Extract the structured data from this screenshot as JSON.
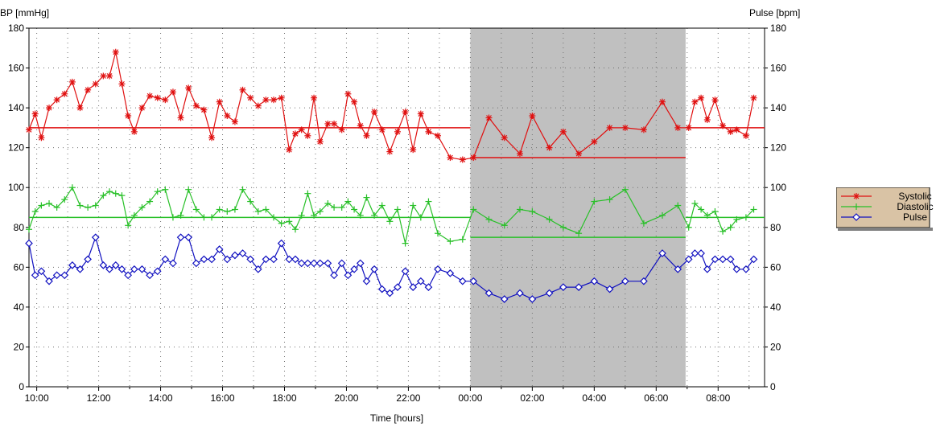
{
  "chart_data": {
    "type": "line",
    "ylabel_left": "BP [mmHg]",
    "ylabel_right": "Pulse [bpm]",
    "xlabel": "Time [hours]",
    "ylim": [
      0,
      180
    ],
    "yticks": [
      0,
      20,
      40,
      60,
      80,
      100,
      120,
      140,
      160,
      180
    ],
    "xlim_hours": [
      9.75,
      33.5
    ],
    "xtick_labels": [
      "10:00",
      "12:00",
      "14:00",
      "16:00",
      "18:00",
      "20:00",
      "22:00",
      "00:00",
      "02:00",
      "04:00",
      "06:00",
      "08:00"
    ],
    "xtick_hours": [
      10,
      12,
      14,
      16,
      18,
      20,
      22,
      24,
      26,
      28,
      30,
      32
    ],
    "grid": true,
    "night_period_hours": [
      24,
      30.95
    ],
    "colors": {
      "systolic": "#e01010",
      "diastolic": "#28c028",
      "pulse": "#1010c0",
      "night_shade": "#c0c0c0",
      "legend_bg": "#d9c3a5"
    },
    "series": [
      {
        "name": "Systolic",
        "color": "#e01010",
        "marker": "asterisk",
        "x": [
          9.75,
          9.95,
          10.15,
          10.4,
          10.65,
          10.9,
          11.15,
          11.4,
          11.65,
          11.9,
          12.15,
          12.35,
          12.55,
          12.75,
          12.95,
          13.15,
          13.4,
          13.65,
          13.9,
          14.15,
          14.4,
          14.65,
          14.9,
          15.15,
          15.4,
          15.65,
          15.9,
          16.15,
          16.4,
          16.65,
          16.9,
          17.15,
          17.4,
          17.65,
          17.9,
          18.15,
          18.35,
          18.55,
          18.75,
          18.95,
          19.15,
          19.4,
          19.6,
          19.85,
          20.05,
          20.25,
          20.45,
          20.65,
          20.9,
          21.15,
          21.4,
          21.65,
          21.9,
          22.15,
          22.4,
          22.65,
          22.95,
          23.35,
          23.75,
          24.1,
          24.6,
          25.1,
          25.6,
          26.0,
          26.55,
          27.0,
          27.5,
          28.0,
          28.5,
          29.0,
          29.6,
          30.2,
          30.7,
          31.05,
          31.25,
          31.45,
          31.65,
          31.9,
          32.15,
          32.4,
          32.6,
          32.9,
          33.15
        ],
        "values": [
          129,
          137,
          125,
          140,
          144,
          147,
          153,
          140,
          149,
          152,
          156,
          156,
          168,
          152,
          136,
          128,
          140,
          146,
          145,
          144,
          148,
          135,
          150,
          141,
          139,
          125,
          143,
          136,
          133,
          149,
          145,
          141,
          144,
          144,
          145,
          119,
          127,
          129,
          126,
          145,
          123,
          132,
          132,
          129,
          147,
          143,
          131,
          126,
          138,
          129,
          118,
          128,
          138,
          119,
          137,
          128,
          126,
          115,
          114,
          115,
          135,
          125,
          117,
          136,
          120,
          128,
          117,
          123,
          130,
          130,
          129,
          143,
          130,
          130,
          143,
          145,
          134,
          144,
          131,
          128,
          129,
          126,
          145
        ],
        "mean_segments": [
          {
            "x": [
              9.75,
              24
            ],
            "y": 130
          },
          {
            "x": [
              24,
              30.95
            ],
            "y": 115
          },
          {
            "x": [
              30.95,
              33.5
            ],
            "y": 130
          }
        ]
      },
      {
        "name": "Diastolic",
        "color": "#28c028",
        "marker": "plus",
        "x": [
          9.75,
          9.95,
          10.15,
          10.4,
          10.65,
          10.9,
          11.15,
          11.4,
          11.65,
          11.9,
          12.15,
          12.35,
          12.55,
          12.75,
          12.95,
          13.15,
          13.4,
          13.65,
          13.9,
          14.15,
          14.4,
          14.65,
          14.9,
          15.15,
          15.4,
          15.65,
          15.9,
          16.15,
          16.4,
          16.65,
          16.9,
          17.15,
          17.4,
          17.65,
          17.9,
          18.15,
          18.35,
          18.55,
          18.75,
          18.95,
          19.15,
          19.4,
          19.6,
          19.85,
          20.05,
          20.25,
          20.45,
          20.65,
          20.9,
          21.15,
          21.4,
          21.65,
          21.9,
          22.15,
          22.4,
          22.65,
          22.95,
          23.35,
          23.75,
          24.1,
          24.6,
          25.1,
          25.6,
          26.0,
          26.55,
          27.0,
          27.5,
          28.0,
          28.5,
          29.0,
          29.6,
          30.2,
          30.7,
          31.05,
          31.25,
          31.45,
          31.65,
          31.9,
          32.15,
          32.4,
          32.6,
          32.9,
          33.15
        ],
        "values": [
          79,
          88,
          91,
          92,
          90,
          94,
          100,
          91,
          90,
          91,
          96,
          98,
          97,
          96,
          81,
          86,
          90,
          93,
          98,
          99,
          85,
          86,
          99,
          89,
          85,
          85,
          89,
          88,
          89,
          99,
          93,
          88,
          89,
          85,
          82,
          83,
          79,
          86,
          97,
          86,
          88,
          92,
          90,
          90,
          93,
          89,
          86,
          95,
          86,
          91,
          83,
          89,
          72,
          91,
          85,
          93,
          77,
          73,
          74,
          89,
          84,
          81,
          89,
          88,
          84,
          80,
          77,
          93,
          94,
          99,
          82,
          86,
          91,
          80,
          92,
          89,
          86,
          88,
          78,
          80,
          84,
          85,
          89
        ],
        "mean_segments": [
          {
            "x": [
              9.75,
              24
            ],
            "y": 85
          },
          {
            "x": [
              24,
              30.95
            ],
            "y": 75
          },
          {
            "x": [
              30.95,
              33.5
            ],
            "y": 85
          }
        ]
      },
      {
        "name": "Pulse",
        "color": "#1010c0",
        "marker": "diamond",
        "x": [
          9.75,
          9.95,
          10.15,
          10.4,
          10.65,
          10.9,
          11.15,
          11.4,
          11.65,
          11.9,
          12.15,
          12.35,
          12.55,
          12.75,
          12.95,
          13.15,
          13.4,
          13.65,
          13.9,
          14.15,
          14.4,
          14.65,
          14.9,
          15.15,
          15.4,
          15.65,
          15.9,
          16.15,
          16.4,
          16.65,
          16.9,
          17.15,
          17.4,
          17.65,
          17.9,
          18.15,
          18.35,
          18.55,
          18.75,
          18.95,
          19.15,
          19.4,
          19.6,
          19.85,
          20.05,
          20.25,
          20.45,
          20.65,
          20.9,
          21.15,
          21.4,
          21.65,
          21.9,
          22.15,
          22.4,
          22.65,
          22.95,
          23.35,
          23.75,
          24.1,
          24.6,
          25.1,
          25.6,
          26.0,
          26.55,
          27.0,
          27.5,
          28.0,
          28.5,
          29.0,
          29.6,
          30.2,
          30.7,
          31.05,
          31.25,
          31.45,
          31.65,
          31.9,
          32.15,
          32.4,
          32.6,
          32.9,
          33.15
        ],
        "values": [
          72,
          56,
          58,
          53,
          56,
          56,
          61,
          59,
          64,
          75,
          61,
          59,
          61,
          59,
          56,
          59,
          59,
          56,
          58,
          64,
          62,
          75,
          75,
          62,
          64,
          64,
          69,
          64,
          66,
          67,
          64,
          59,
          64,
          64,
          72,
          64,
          64,
          62,
          62,
          62,
          62,
          62,
          56,
          62,
          56,
          59,
          62,
          53,
          59,
          49,
          47,
          50,
          58,
          50,
          53,
          50,
          59,
          57,
          53,
          53,
          47,
          44,
          47,
          44,
          47,
          50,
          50,
          53,
          49,
          53,
          53,
          67,
          59,
          64,
          67,
          67,
          59,
          64,
          64,
          64,
          59,
          59,
          64
        ],
        "mean_segments": []
      }
    ]
  },
  "labels": {
    "ylabel_left": "BP [mmHg]",
    "ylabel_right": "Pulse [bpm]",
    "xlabel": "Time [hours]"
  },
  "legend": {
    "items": [
      {
        "label": "Systolic",
        "color": "#e01010",
        "marker": "asterisk"
      },
      {
        "label": "Diastolic",
        "color": "#28c028",
        "marker": "plus"
      },
      {
        "label": "Pulse",
        "color": "#1010c0",
        "marker": "diamond"
      }
    ]
  }
}
